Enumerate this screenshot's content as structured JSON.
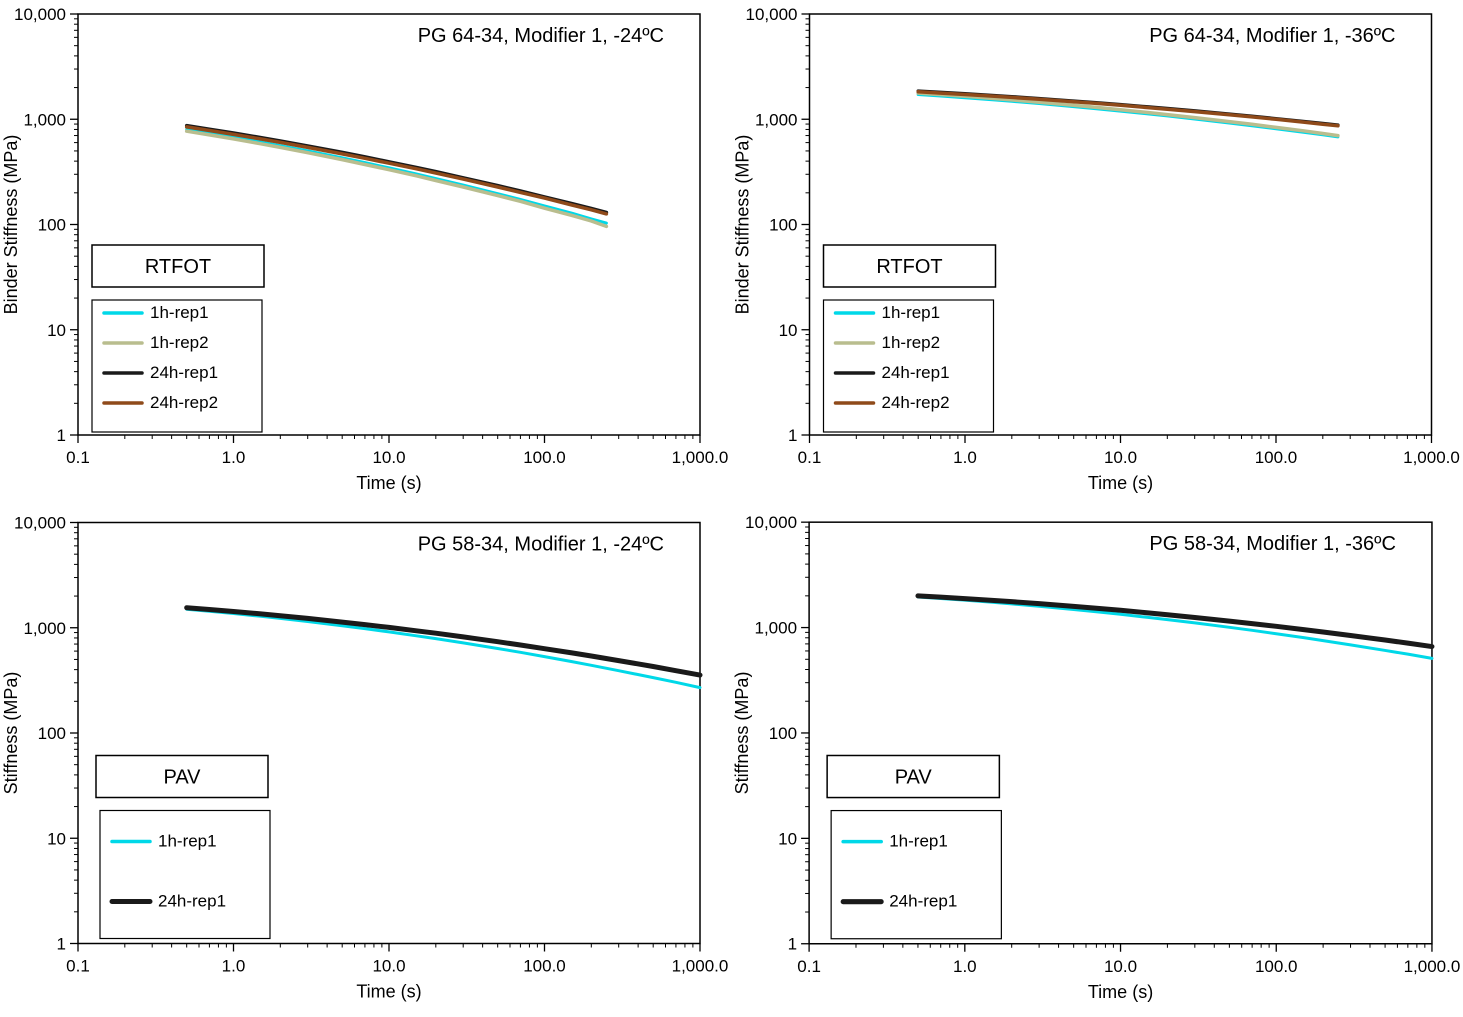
{
  "page": {
    "background": "#ffffff"
  },
  "chart_data": [
    {
      "id": "pg64-modifier1-minus24",
      "type": "line",
      "title": "PG 64-34, Modifier 1, -24ºC",
      "xlabel": "Time (s)",
      "ylabel": "Binder Stiffness (MPa)",
      "x_scale": "log",
      "y_scale": "log",
      "xlim": [
        0.1,
        1000
      ],
      "ylim": [
        1,
        10000
      ],
      "x_ticks": [
        {
          "v": 0.1,
          "label": "0.1"
        },
        {
          "v": 1,
          "label": "1.0"
        },
        {
          "v": 10,
          "label": "10.0"
        },
        {
          "v": 100,
          "label": "100.0"
        },
        {
          "v": 1000,
          "label": "1,000.0"
        }
      ],
      "y_ticks": [
        {
          "v": 1,
          "label": "1"
        },
        {
          "v": 10,
          "label": "10"
        },
        {
          "v": 100,
          "label": "100"
        },
        {
          "v": 1000,
          "label": "1,000"
        },
        {
          "v": 10000,
          "label": "10,000"
        }
      ],
      "grid": false,
      "legend_title": "RTFOT",
      "legend_position": "left-middle",
      "series": [
        {
          "name": "1h-rep1",
          "color": "#00d8e8",
          "width": 3,
          "t": [
            0.5,
            0.7,
            1,
            1.5,
            2,
            3,
            5,
            7,
            10,
            15,
            20,
            30,
            50,
            70,
            100,
            150,
            200,
            250
          ],
          "s": [
            800,
            738,
            675,
            607,
            561,
            500,
            430,
            387,
            345,
            302,
            273,
            237,
            196,
            173,
            150,
            128,
            113,
            103
          ]
        },
        {
          "name": "1h-rep2",
          "color": "#b9bd8e",
          "width": 3.5,
          "t": [
            0.5,
            0.7,
            1,
            1.5,
            2,
            3,
            5,
            7,
            10,
            15,
            20,
            30,
            50,
            70,
            100,
            150,
            200,
            250
          ],
          "s": [
            770,
            710,
            650,
            584,
            540,
            481,
            414,
            372,
            332,
            290,
            262,
            227,
            188,
            166,
            143,
            122,
            108,
            96
          ]
        },
        {
          "name": "24h-rep1",
          "color": "#1a1a1a",
          "width": 3.5,
          "t": [
            0.5,
            0.7,
            1,
            1.5,
            2,
            3,
            5,
            7,
            10,
            15,
            20,
            30,
            50,
            70,
            100,
            150,
            200,
            250
          ],
          "s": [
            870,
            805,
            740,
            669,
            621,
            557,
            484,
            439,
            394,
            348,
            318,
            278,
            234,
            208,
            183,
            158,
            142,
            130
          ]
        },
        {
          "name": "24h-rep2",
          "color": "#8f4a1a",
          "width": 3.5,
          "t": [
            0.5,
            0.7,
            1,
            1.5,
            2,
            3,
            5,
            7,
            10,
            15,
            20,
            30,
            50,
            70,
            100,
            150,
            200,
            250
          ],
          "s": [
            845,
            781,
            718,
            649,
            602,
            540,
            469,
            426,
            382,
            338,
            308,
            270,
            227,
            202,
            178,
            153,
            138,
            126
          ]
        }
      ]
    },
    {
      "id": "pg64-modifier1-minus36",
      "type": "line",
      "title": "PG 64-34, Modifier 1, -36ºC",
      "xlabel": "Time (s)",
      "ylabel": "Binder Stiffness (MPa)",
      "x_scale": "log",
      "y_scale": "log",
      "xlim": [
        0.1,
        1000
      ],
      "ylim": [
        1,
        10000
      ],
      "x_ticks": [
        {
          "v": 0.1,
          "label": "0.1"
        },
        {
          "v": 1,
          "label": "1.0"
        },
        {
          "v": 10,
          "label": "10.0"
        },
        {
          "v": 100,
          "label": "100.0"
        },
        {
          "v": 1000,
          "label": "1,000.0"
        }
      ],
      "y_ticks": [
        {
          "v": 1,
          "label": "1"
        },
        {
          "v": 10,
          "label": "10"
        },
        {
          "v": 100,
          "label": "100"
        },
        {
          "v": 1000,
          "label": "1,000"
        },
        {
          "v": 10000,
          "label": "10,000"
        }
      ],
      "grid": false,
      "legend_title": "RTFOT",
      "legend_position": "left-middle",
      "series": [
        {
          "name": "1h-rep1",
          "color": "#00d8e8",
          "width": 3,
          "t": [
            0.5,
            0.7,
            1,
            1.5,
            2,
            3,
            5,
            7,
            10,
            15,
            20,
            30,
            50,
            70,
            100,
            150,
            200,
            250
          ],
          "s": [
            1720,
            1664,
            1604,
            1533,
            1482,
            1410,
            1319,
            1259,
            1196,
            1125,
            1075,
            1006,
            922,
            869,
            813,
            753,
            711,
            680
          ]
        },
        {
          "name": "1h-rep2",
          "color": "#b9bd8e",
          "width": 3.5,
          "t": [
            0.5,
            0.7,
            1,
            1.5,
            2,
            3,
            5,
            7,
            10,
            15,
            20,
            30,
            50,
            70,
            100,
            150,
            200,
            250
          ],
          "s": [
            1772,
            1714,
            1652,
            1579,
            1526,
            1452,
            1359,
            1297,
            1232,
            1159,
            1107,
            1036,
            950,
            895,
            837,
            776,
            732,
            700
          ]
        },
        {
          "name": "24h-rep1",
          "color": "#1a1a1a",
          "width": 3.5,
          "t": [
            0.5,
            0.7,
            1,
            1.5,
            2,
            3,
            5,
            7,
            10,
            15,
            20,
            30,
            50,
            70,
            100,
            150,
            200,
            250
          ],
          "s": [
            1850,
            1800,
            1746,
            1683,
            1638,
            1572,
            1489,
            1435,
            1377,
            1311,
            1265,
            1200,
            1119,
            1068,
            1013,
            953,
            911,
            880
          ]
        },
        {
          "name": "24h-rep2",
          "color": "#8f4a1a",
          "width": 3.5,
          "t": [
            0.5,
            0.7,
            1,
            1.5,
            2,
            3,
            5,
            7,
            10,
            15,
            20,
            30,
            50,
            70,
            100,
            150,
            200,
            250
          ],
          "s": [
            1822,
            1773,
            1720,
            1658,
            1613,
            1548,
            1467,
            1413,
            1356,
            1291,
            1246,
            1182,
            1102,
            1052,
            998,
            939,
            897,
            867
          ]
        }
      ]
    },
    {
      "id": "pg58-modifier1-minus24",
      "type": "line",
      "title": "PG 58-34, Modifier 1, -24ºC",
      "xlabel": "Time (s)",
      "ylabel": "Stiffness (MPa)",
      "x_scale": "log",
      "y_scale": "log",
      "xlim": [
        0.1,
        1000
      ],
      "ylim": [
        1,
        10000
      ],
      "x_ticks": [
        {
          "v": 0.1,
          "label": "0.1"
        },
        {
          "v": 1,
          "label": "1.0"
        },
        {
          "v": 10,
          "label": "10.0"
        },
        {
          "v": 100,
          "label": "100.0"
        },
        {
          "v": 1000,
          "label": "1,000.0"
        }
      ],
      "y_ticks": [
        {
          "v": 1,
          "label": "1"
        },
        {
          "v": 10,
          "label": "10"
        },
        {
          "v": 100,
          "label": "100"
        },
        {
          "v": 1000,
          "label": "1,000"
        },
        {
          "v": 10000,
          "label": "10,000"
        }
      ],
      "grid": false,
      "legend_title": "PAV",
      "legend_position": "left-middle",
      "series": [
        {
          "name": "1h-rep1",
          "color": "#00d8e8",
          "width": 3,
          "t": [
            0.5,
            0.7,
            1,
            1.5,
            2,
            3,
            5,
            7,
            10,
            15,
            20,
            30,
            50,
            70,
            100,
            150,
            200,
            300,
            500,
            700,
            1000
          ],
          "s": [
            1500,
            1436,
            1366,
            1285,
            1227,
            1147,
            1046,
            981,
            913,
            839,
            788,
            718,
            635,
            584,
            532,
            477,
            440,
            391,
            336,
            303,
            270
          ]
        },
        {
          "name": "24h-rep1",
          "color": "#1a1a1a",
          "width": 5,
          "t": [
            0.5,
            0.7,
            1,
            1.5,
            2,
            3,
            5,
            7,
            10,
            15,
            20,
            30,
            50,
            70,
            100,
            150,
            200,
            300,
            500,
            700,
            1000
          ],
          "s": [
            1550,
            1491,
            1428,
            1354,
            1301,
            1226,
            1132,
            1071,
            1007,
            936,
            887,
            819,
            737,
            686,
            633,
            577,
            539,
            487,
            428,
            391,
            355
          ]
        }
      ]
    },
    {
      "id": "pg58-modifier1-minus36",
      "type": "line",
      "title": "PG 58-34, Modifier 1, -36ºC",
      "xlabel": "Time (s)",
      "ylabel": "Stiffness (MPa)",
      "x_scale": "log",
      "y_scale": "log",
      "xlim": [
        0.1,
        1000
      ],
      "ylim": [
        1,
        10000
      ],
      "x_ticks": [
        {
          "v": 0.1,
          "label": "0.1"
        },
        {
          "v": 1,
          "label": "1.0"
        },
        {
          "v": 10,
          "label": "10.0"
        },
        {
          "v": 100,
          "label": "100.0"
        },
        {
          "v": 1000,
          "label": "1,000.0"
        }
      ],
      "y_ticks": [
        {
          "v": 1,
          "label": "1"
        },
        {
          "v": 10,
          "label": "10"
        },
        {
          "v": 100,
          "label": "100"
        },
        {
          "v": 1000,
          "label": "1,000"
        },
        {
          "v": 10000,
          "label": "10,000"
        }
      ],
      "grid": false,
      "legend_title": "PAV",
      "legend_position": "left-middle",
      "series": [
        {
          "name": "1h-rep1",
          "color": "#00d8e8",
          "width": 3,
          "t": [
            0.5,
            0.7,
            1,
            1.5,
            2,
            3,
            5,
            7,
            10,
            15,
            20,
            30,
            50,
            70,
            100,
            150,
            200,
            300,
            500,
            700,
            1000
          ],
          "s": [
            1950,
            1887,
            1818,
            1736,
            1676,
            1592,
            1483,
            1411,
            1335,
            1250,
            1190,
            1107,
            1005,
            941,
            874,
            802,
            752,
            686,
            607,
            559,
            510
          ]
        },
        {
          "name": "24h-rep1",
          "color": "#1a1a1a",
          "width": 5,
          "t": [
            0.5,
            0.7,
            1,
            1.5,
            2,
            3,
            5,
            7,
            10,
            15,
            20,
            30,
            50,
            70,
            100,
            150,
            200,
            300,
            500,
            700,
            1000
          ],
          "s": [
            2000,
            1945,
            1884,
            1813,
            1761,
            1686,
            1590,
            1525,
            1457,
            1379,
            1324,
            1247,
            1152,
            1090,
            1027,
            956,
            908,
            841,
            761,
            711,
            660
          ]
        }
      ]
    }
  ]
}
